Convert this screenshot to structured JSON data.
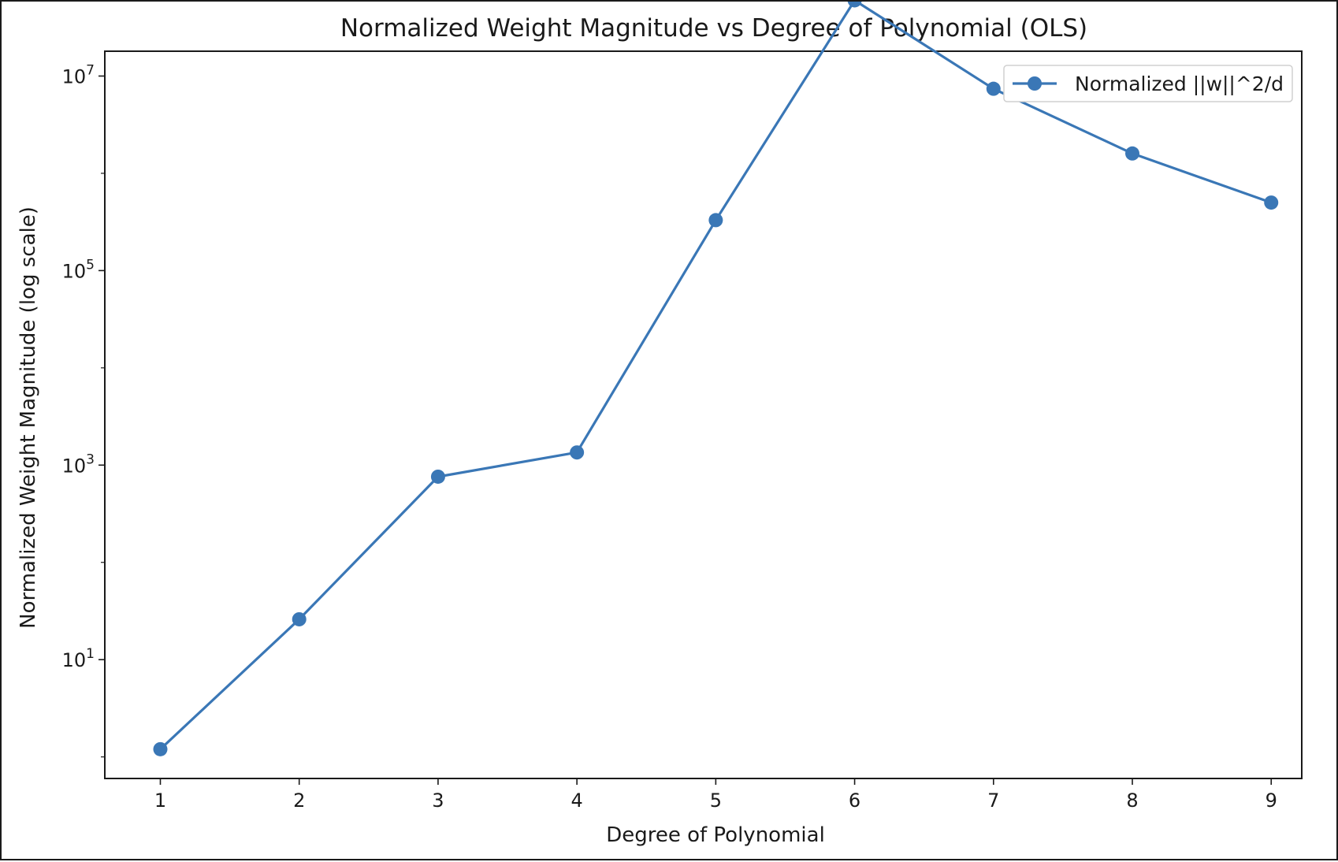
{
  "chart_data": {
    "type": "line",
    "title": "Normalized Weight Magnitude vs Degree of Polynomial (OLS)",
    "xlabel": "Degree of Polynomial",
    "ylabel": "Normalized Weight Magnitude (log scale)",
    "yscale": "log",
    "xlim": [
      0.6,
      9.22
    ],
    "ylim": [
      0.6,
      18000000.0
    ],
    "grid": false,
    "legend_position": "top-right",
    "x_ticks": [
      1,
      2,
      3,
      4,
      5,
      6,
      7,
      8,
      9
    ],
    "y_ticks": [
      {
        "value": 10,
        "base": "10",
        "exp": "1"
      },
      {
        "value": 1000,
        "base": "10",
        "exp": "3"
      },
      {
        "value": 100000,
        "base": "10",
        "exp": "5"
      },
      {
        "value": 10000000,
        "base": "10",
        "exp": "7"
      }
    ],
    "series": [
      {
        "name": "Normalized ||w||^2/d",
        "color": "#3a77b6",
        "marker": "circle",
        "x": [
          1,
          2,
          3,
          4,
          5,
          6,
          7,
          8,
          9
        ],
        "y": [
          1.2,
          26,
          760,
          1350,
          330000,
          60000000,
          7400000,
          1600000,
          500000
        ]
      }
    ]
  }
}
